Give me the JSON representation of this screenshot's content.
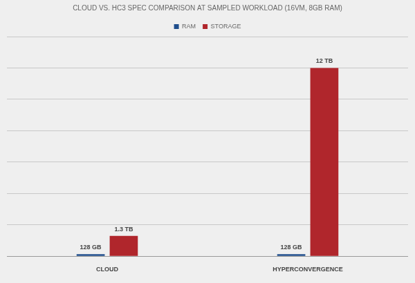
{
  "chart_data": {
    "type": "bar",
    "title": "CLOUD VS. HC3 SPEC COMPARISON AT SAMPLED WORKLOAD (16VM, 8GB RAM)",
    "categories": [
      "CLOUD",
      "HYPERCONVERGENCE"
    ],
    "series": [
      {
        "name": "RAM",
        "color": "#1f4e8c",
        "values": [
          0.128,
          0.128
        ],
        "value_labels": [
          "128 GB",
          "128 GB"
        ]
      },
      {
        "name": "STORAGE",
        "color": "#b0262c",
        "values": [
          1.3,
          12
        ],
        "value_labels": [
          "1.3 TB",
          "12 TB"
        ]
      }
    ],
    "ylim": [
      0,
      14
    ],
    "yticks": [
      0,
      2,
      4,
      6,
      8,
      10,
      12,
      14
    ],
    "grid": true,
    "legend": "top",
    "tick_labels": "x",
    "data_labels": true
  }
}
